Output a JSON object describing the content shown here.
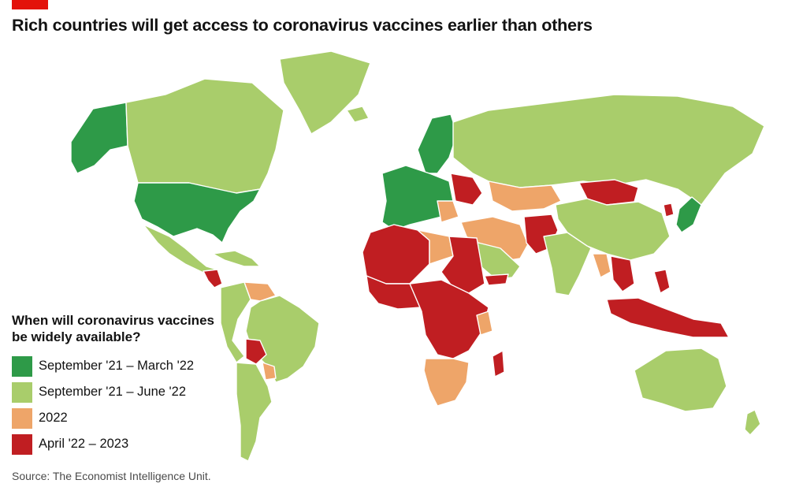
{
  "brand_color": "#e3120b",
  "title": "Rich countries will get access to coronavirus vaccines earlier than others",
  "legend": {
    "title": "When will coronavirus vaccines be widely available?",
    "items": [
      {
        "label": "September '21 – March '22",
        "color": "#2e9a48"
      },
      {
        "label": "September '21 – June '22",
        "color": "#a9cd6b"
      },
      {
        "label": "2022",
        "color": "#eea569"
      },
      {
        "label": "April '22 – 2023",
        "color": "#c01e22"
      }
    ]
  },
  "source": "Source: The Economist Intelligence Unit."
}
